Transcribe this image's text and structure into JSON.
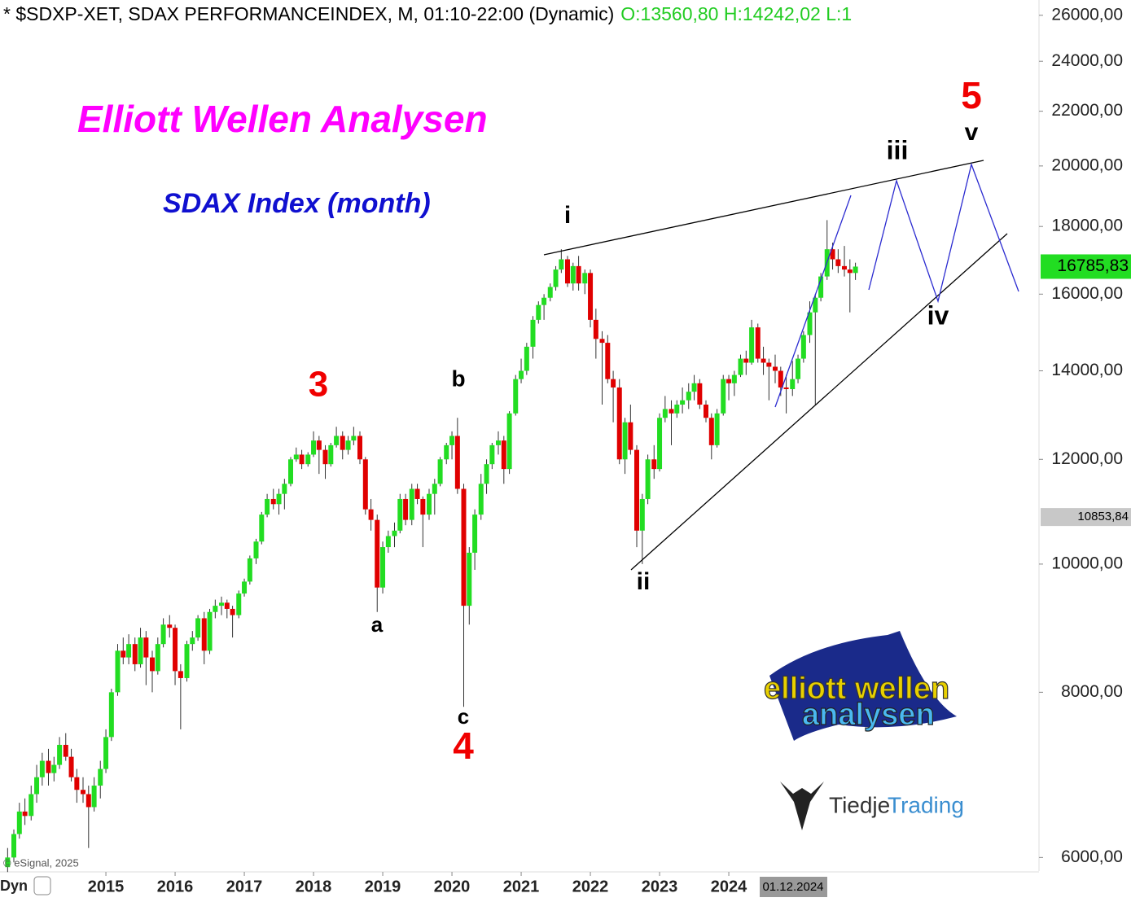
{
  "chart_data": {
    "type": "candlestick",
    "header": "* $SDXP-XET, SDAX PERFORMANCEINDEX, M, 01:10-22:00 (Dynamic)",
    "header_ohlc": "O:13560,80 H:14242,02 L:1",
    "title": "Elliott Wellen Analysen",
    "subtitle": "SDAX Index (month)",
    "source": "© eSignal, 2025",
    "mode_label": "Dyn",
    "cursor_label": "01.12.2024",
    "logos": [
      "elliott wellen",
      "analysen",
      "Tiedje",
      "Trading"
    ],
    "annotations": [
      "3",
      "a",
      "b",
      "c",
      "4",
      "i",
      "ii",
      "iii",
      "iv",
      "v",
      "5"
    ],
    "log_scale": true,
    "up_color": "#22dd22",
    "down_color": "#e00000",
    "xlim": [
      2013.47,
      2028.47
    ],
    "xticks": [
      2015,
      2016,
      2017,
      2018,
      2019,
      2020,
      2021,
      2022,
      2023,
      2024
    ],
    "ylim": [
      5860,
      26700
    ],
    "yticks": [
      {
        "value": 6000,
        "label": "6000,00"
      },
      {
        "value": 8000,
        "label": "8000,00"
      },
      {
        "value": 10000,
        "label": "10000,00"
      },
      {
        "value": 12000,
        "label": "12000,00"
      },
      {
        "value": 14000,
        "label": "14000,00"
      },
      {
        "value": 16000,
        "label": "16000,00"
      },
      {
        "value": 18000,
        "label": "18000,00"
      },
      {
        "value": 20000,
        "label": "20000,00"
      },
      {
        "value": 22000,
        "label": "22000,00"
      },
      {
        "value": 24000,
        "label": "24000,00"
      },
      {
        "value": 26000,
        "label": "26000,00"
      }
    ],
    "price_markers": [
      {
        "value": 16785.83,
        "label": "16785,83",
        "color": "#22dd22"
      },
      {
        "value": 10853.84,
        "label": "10853,84",
        "color": "#c8c8c8"
      }
    ],
    "x": [
      2013.58,
      2013.67,
      2013.75,
      2013.83,
      2013.92,
      2014.0,
      2014.08,
      2014.17,
      2014.25,
      2014.33,
      2014.42,
      2014.5,
      2014.58,
      2014.67,
      2014.75,
      2014.83,
      2014.92,
      2015.0,
      2015.08,
      2015.17,
      2015.25,
      2015.33,
      2015.42,
      2015.5,
      2015.58,
      2015.67,
      2015.75,
      2015.83,
      2015.92,
      2016.0,
      2016.08,
      2016.17,
      2016.25,
      2016.33,
      2016.42,
      2016.5,
      2016.58,
      2016.67,
      2016.75,
      2016.83,
      2016.92,
      2017.0,
      2017.08,
      2017.17,
      2017.25,
      2017.33,
      2017.42,
      2017.5,
      2017.58,
      2017.67,
      2017.75,
      2017.83,
      2017.92,
      2018.0,
      2018.08,
      2018.17,
      2018.25,
      2018.33,
      2018.42,
      2018.5,
      2018.58,
      2018.67,
      2018.75,
      2018.83,
      2018.92,
      2019.0,
      2019.08,
      2019.17,
      2019.25,
      2019.33,
      2019.42,
      2019.5,
      2019.58,
      2019.67,
      2019.75,
      2019.83,
      2019.92,
      2020.0,
      2020.08,
      2020.17,
      2020.25,
      2020.33,
      2020.42,
      2020.5,
      2020.58,
      2020.67,
      2020.75,
      2020.83,
      2020.92,
      2021.0,
      2021.08,
      2021.17,
      2021.25,
      2021.33,
      2021.42,
      2021.5,
      2021.58,
      2021.67,
      2021.75,
      2021.83,
      2021.92,
      2022.0,
      2022.08,
      2022.17,
      2022.25,
      2022.33,
      2022.42,
      2022.5,
      2022.58,
      2022.67,
      2022.75,
      2022.83,
      2022.92,
      2023.0,
      2023.08,
      2023.17,
      2023.25,
      2023.33,
      2023.42,
      2023.5,
      2023.58,
      2023.67,
      2023.75,
      2023.83,
      2023.92,
      2024.0,
      2024.08,
      2024.17,
      2024.25,
      2024.33,
      2024.42,
      2024.5,
      2024.58,
      2024.67,
      2024.75,
      2024.83,
      2024.92,
      2025.0,
      2025.08,
      2025.17,
      2025.25,
      2025.33,
      2025.42,
      2025.5,
      2025.58,
      2025.67,
      2025.75,
      2025.83
    ],
    "ohlc": [
      [
        5900,
        6100,
        5850,
        6000
      ],
      [
        6000,
        6300,
        5950,
        6250
      ],
      [
        6250,
        6600,
        6200,
        6500
      ],
      [
        6500,
        6650,
        6350,
        6450
      ],
      [
        6450,
        6800,
        6400,
        6700
      ],
      [
        6700,
        7050,
        6600,
        6900
      ],
      [
        6900,
        7200,
        6800,
        7100
      ],
      [
        7100,
        7250,
        6800,
        6950
      ],
      [
        6950,
        7150,
        6850,
        7050
      ],
      [
        7050,
        7400,
        7000,
        7300
      ],
      [
        7300,
        7450,
        7100,
        7150
      ],
      [
        7150,
        7250,
        6850,
        6900
      ],
      [
        6900,
        7000,
        6600,
        6750
      ],
      [
        6750,
        6900,
        6600,
        6700
      ],
      [
        6700,
        6800,
        6100,
        6550
      ],
      [
        6550,
        6900,
        6500,
        6800
      ],
      [
        6800,
        7100,
        6650,
        7000
      ],
      [
        7000,
        7500,
        6950,
        7400
      ],
      [
        7400,
        8050,
        7350,
        8000
      ],
      [
        8000,
        8700,
        7950,
        8600
      ],
      [
        8600,
        8800,
        8400,
        8500
      ],
      [
        8500,
        8850,
        8400,
        8700
      ],
      [
        8700,
        8800,
        8300,
        8400
      ],
      [
        8400,
        8950,
        8350,
        8800
      ],
      [
        8800,
        8900,
        8100,
        8500
      ],
      [
        8500,
        8600,
        8000,
        8300
      ],
      [
        8300,
        8800,
        8250,
        8700
      ],
      [
        8700,
        9100,
        8650,
        9000
      ],
      [
        9000,
        9150,
        8800,
        8950
      ],
      [
        8950,
        9000,
        8100,
        8300
      ],
      [
        8300,
        8400,
        7500,
        8200
      ],
      [
        8200,
        8750,
        8150,
        8700
      ],
      [
        8700,
        8900,
        8600,
        8800
      ],
      [
        8800,
        9150,
        8750,
        9100
      ],
      [
        9100,
        9200,
        8400,
        8600
      ],
      [
        8600,
        9250,
        8550,
        9200
      ],
      [
        9200,
        9400,
        9100,
        9300
      ],
      [
        9300,
        9450,
        9150,
        9350
      ],
      [
        9350,
        9400,
        9100,
        9250
      ],
      [
        9250,
        9300,
        8800,
        9150
      ],
      [
        9150,
        9550,
        9100,
        9500
      ],
      [
        9500,
        9750,
        9450,
        9700
      ],
      [
        9700,
        10150,
        9650,
        10100
      ],
      [
        10100,
        10450,
        10000,
        10400
      ],
      [
        10400,
        10950,
        10350,
        10900
      ],
      [
        10900,
        11300,
        10850,
        11200
      ],
      [
        11200,
        11400,
        11000,
        11100
      ],
      [
        11100,
        11400,
        10900,
        11300
      ],
      [
        11300,
        11600,
        11000,
        11500
      ],
      [
        11500,
        12050,
        11450,
        12000
      ],
      [
        12000,
        12250,
        11950,
        12100
      ],
      [
        12100,
        12200,
        11800,
        11900
      ],
      [
        11900,
        12150,
        11850,
        12100
      ],
      [
        12100,
        12600,
        12050,
        12400
      ],
      [
        12400,
        12500,
        11700,
        12200
      ],
      [
        12200,
        12300,
        11600,
        11900
      ],
      [
        11900,
        12350,
        11850,
        12300
      ],
      [
        12300,
        12700,
        12250,
        12500
      ],
      [
        12500,
        12600,
        12000,
        12200
      ],
      [
        12200,
        12500,
        12100,
        12400
      ],
      [
        12400,
        12700,
        12300,
        12500
      ],
      [
        12500,
        12600,
        11900,
        12000
      ],
      [
        12000,
        12050,
        10900,
        11000
      ],
      [
        11000,
        11200,
        10600,
        10800
      ],
      [
        10800,
        10900,
        9200,
        9600
      ],
      [
        9600,
        10400,
        9500,
        10300
      ],
      [
        10300,
        10600,
        10200,
        10500
      ],
      [
        10500,
        10750,
        10300,
        10600
      ],
      [
        10600,
        11300,
        10550,
        11200
      ],
      [
        11200,
        11300,
        10700,
        10800
      ],
      [
        10800,
        11500,
        10700,
        11400
      ],
      [
        11400,
        11500,
        11100,
        11200
      ],
      [
        11200,
        11250,
        10300,
        10900
      ],
      [
        10900,
        11400,
        10800,
        11300
      ],
      [
        11300,
        11600,
        10900,
        11500
      ],
      [
        11500,
        12050,
        11450,
        12000
      ],
      [
        12000,
        12350,
        11900,
        12300
      ],
      [
        12300,
        12600,
        12000,
        12500
      ],
      [
        12500,
        12900,
        11300,
        11400
      ],
      [
        11400,
        11500,
        7800,
        9300
      ],
      [
        9300,
        10300,
        9000,
        10200
      ],
      [
        10200,
        11000,
        9900,
        10900
      ],
      [
        10900,
        11700,
        10800,
        11500
      ],
      [
        11500,
        12000,
        11300,
        11900
      ],
      [
        11900,
        12350,
        11800,
        12300
      ],
      [
        12300,
        12600,
        12100,
        12400
      ],
      [
        12400,
        12500,
        11500,
        11800
      ],
      [
        11800,
        13050,
        11700,
        13000
      ],
      [
        13000,
        13900,
        12950,
        13800
      ],
      [
        13800,
        14300,
        13700,
        14000
      ],
      [
        14000,
        14700,
        13900,
        14600
      ],
      [
        14600,
        15400,
        14300,
        15300
      ],
      [
        15300,
        15800,
        15200,
        15700
      ],
      [
        15700,
        16000,
        15300,
        15900
      ],
      [
        15900,
        16300,
        15800,
        16200
      ],
      [
        16200,
        16800,
        16100,
        16700
      ],
      [
        16700,
        17300,
        16600,
        17000
      ],
      [
        17000,
        17100,
        16200,
        16300
      ],
      [
        16300,
        16900,
        16100,
        16800
      ],
      [
        16800,
        17100,
        16100,
        16300
      ],
      [
        16300,
        16700,
        16000,
        16600
      ],
      [
        16600,
        16700,
        15100,
        15300
      ],
      [
        15300,
        15600,
        14300,
        14800
      ],
      [
        14800,
        15000,
        13200,
        14700
      ],
      [
        14700,
        14900,
        13700,
        13800
      ],
      [
        13800,
        14000,
        12800,
        13600
      ],
      [
        13600,
        13800,
        11900,
        12000
      ],
      [
        12000,
        12900,
        11700,
        12800
      ],
      [
        12800,
        13200,
        12100,
        12200
      ],
      [
        12200,
        12300,
        10300,
        10600
      ],
      [
        10600,
        11300,
        10000,
        11200
      ],
      [
        11200,
        12100,
        11100,
        12000
      ],
      [
        12000,
        12300,
        11600,
        11800
      ],
      [
        11800,
        13000,
        11750,
        12900
      ],
      [
        12900,
        13400,
        12800,
        13100
      ],
      [
        13100,
        13300,
        12300,
        13000
      ],
      [
        13000,
        13300,
        12900,
        13200
      ],
      [
        13200,
        13600,
        13000,
        13300
      ],
      [
        13300,
        13700,
        13100,
        13500
      ],
      [
        13500,
        13900,
        13300,
        13700
      ],
      [
        13700,
        13800,
        13100,
        13200
      ],
      [
        13200,
        13300,
        12800,
        12900
      ],
      [
        12900,
        13000,
        12000,
        12300
      ],
      [
        12300,
        13100,
        12250,
        13000
      ],
      [
        13000,
        13900,
        12950,
        13800
      ],
      [
        13800,
        13900,
        13300,
        13700
      ],
      [
        13700,
        14000,
        13400,
        13900
      ],
      [
        13900,
        14400,
        13850,
        14300
      ],
      [
        14300,
        14500,
        13900,
        14200
      ],
      [
        14200,
        15300,
        14150,
        15100
      ],
      [
        15100,
        15200,
        14200,
        14300
      ],
      [
        14300,
        14600,
        13900,
        14200
      ],
      [
        14200,
        14300,
        13300,
        14100
      ],
      [
        14100,
        14400,
        13700,
        14000
      ],
      [
        14000,
        14100,
        13400,
        13600
      ],
      [
        13600,
        13900,
        13000,
        13560.8
      ],
      [
        13560.8,
        14242.02,
        13400,
        13800
      ],
      [
        13800,
        14400,
        13700,
        14300
      ],
      [
        14300,
        15000,
        14200,
        14900
      ],
      [
        14900,
        15800,
        14700,
        15500
      ],
      [
        15500,
        16000,
        13200,
        15900
      ],
      [
        15900,
        16600,
        15800,
        16500
      ],
      [
        16500,
        18200,
        16400,
        17300
      ],
      [
        17300,
        17500,
        16700,
        17000
      ],
      [
        17000,
        17300,
        16600,
        16800
      ],
      [
        16800,
        17400,
        16500,
        16700
      ],
      [
        16700,
        17000,
        15500,
        16600
      ],
      [
        16600,
        16900,
        16400,
        16785.83
      ]
    ]
  }
}
